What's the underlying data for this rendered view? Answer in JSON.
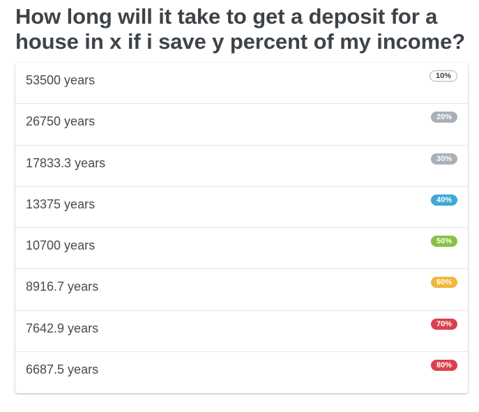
{
  "page": {
    "title": "How long will it take to get a deposit for a house in x if i save y percent of my income?"
  },
  "rows": [
    {
      "label": "53500 years",
      "badge": "10%",
      "badge_color": "#ffffff",
      "badge_style": "outline"
    },
    {
      "label": "26750 years",
      "badge": "20%",
      "badge_color": "#a9b0b8",
      "badge_style": "filled"
    },
    {
      "label": "17833.3 years",
      "badge": "30%",
      "badge_color": "#a9b0b8",
      "badge_style": "filled"
    },
    {
      "label": "13375 years",
      "badge": "40%",
      "badge_color": "#3fa8d8",
      "badge_style": "filled"
    },
    {
      "label": "10700 years",
      "badge": "50%",
      "badge_color": "#8ac044",
      "badge_style": "filled"
    },
    {
      "label": "8916.7 years",
      "badge": "60%",
      "badge_color": "#f2b83a",
      "badge_style": "filled"
    },
    {
      "label": "7642.9 years",
      "badge": "70%",
      "badge_color": "#d9414e",
      "badge_style": "filled"
    },
    {
      "label": "6687.5 years",
      "badge": "80%",
      "badge_color": "#d9414e",
      "badge_style": "filled"
    }
  ]
}
